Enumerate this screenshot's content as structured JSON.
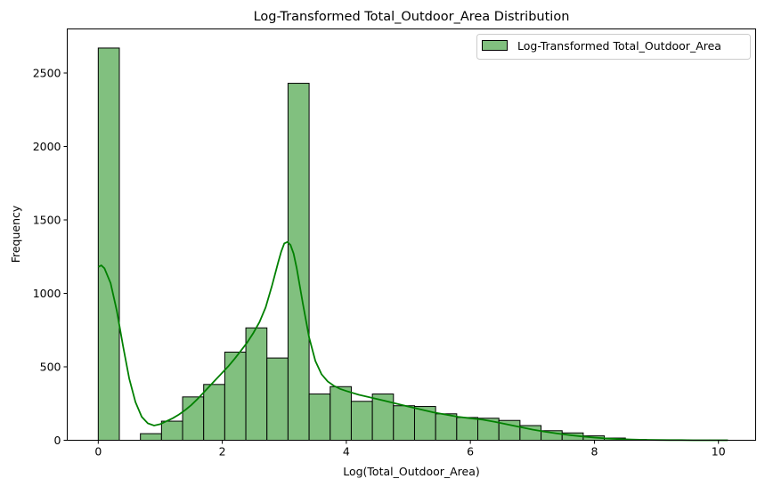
{
  "chart_data": {
    "type": "bar",
    "title": "Log-Transformed Total_Outdoor_Area Distribution",
    "xlabel": "Log(Total_Outdoor_Area)",
    "ylabel": "Frequency",
    "xlim": [
      -0.5,
      10.6
    ],
    "ylim": [
      0,
      2800
    ],
    "xticks": [
      0,
      2,
      4,
      6,
      8,
      10
    ],
    "yticks": [
      0,
      500,
      1000,
      1500,
      2000,
      2500
    ],
    "legend": {
      "label": "Log-Transformed Total_Outdoor_Area",
      "placement": "top-right"
    },
    "grid": false,
    "colors": {
      "bar_fill": "#81c07f",
      "bar_edge": "#000000",
      "kde": "#008000"
    },
    "bins": [
      {
        "x0": 0.0,
        "x1": 0.34,
        "value": 2670
      },
      {
        "x0": 0.34,
        "x1": 0.68,
        "value": 0
      },
      {
        "x0": 0.68,
        "x1": 1.02,
        "value": 45
      },
      {
        "x0": 1.02,
        "x1": 1.36,
        "value": 130
      },
      {
        "x0": 1.36,
        "x1": 1.7,
        "value": 295
      },
      {
        "x0": 1.7,
        "x1": 2.04,
        "value": 380
      },
      {
        "x0": 2.04,
        "x1": 2.38,
        "value": 600
      },
      {
        "x0": 2.38,
        "x1": 2.72,
        "value": 765
      },
      {
        "x0": 2.72,
        "x1": 3.06,
        "value": 560
      },
      {
        "x0": 3.06,
        "x1": 3.4,
        "value": 2430
      },
      {
        "x0": 3.4,
        "x1": 3.74,
        "value": 315
      },
      {
        "x0": 3.74,
        "x1": 4.08,
        "value": 365
      },
      {
        "x0": 4.08,
        "x1": 4.42,
        "value": 265
      },
      {
        "x0": 4.42,
        "x1": 4.76,
        "value": 315
      },
      {
        "x0": 4.76,
        "x1": 5.1,
        "value": 235
      },
      {
        "x0": 5.1,
        "x1": 5.44,
        "value": 230
      },
      {
        "x0": 5.44,
        "x1": 5.78,
        "value": 180
      },
      {
        "x0": 5.78,
        "x1": 6.12,
        "value": 155
      },
      {
        "x0": 6.12,
        "x1": 6.46,
        "value": 150
      },
      {
        "x0": 6.46,
        "x1": 6.8,
        "value": 135
      },
      {
        "x0": 6.8,
        "x1": 7.14,
        "value": 100
      },
      {
        "x0": 7.14,
        "x1": 7.48,
        "value": 65
      },
      {
        "x0": 7.48,
        "x1": 7.82,
        "value": 50
      },
      {
        "x0": 7.82,
        "x1": 8.16,
        "value": 30
      },
      {
        "x0": 8.16,
        "x1": 8.5,
        "value": 15
      },
      {
        "x0": 8.5,
        "x1": 8.84,
        "value": 5
      },
      {
        "x0": 8.84,
        "x1": 9.18,
        "value": 3
      },
      {
        "x0": 9.18,
        "x1": 9.52,
        "value": 2
      },
      {
        "x0": 9.52,
        "x1": 9.86,
        "value": 1
      },
      {
        "x0": 9.86,
        "x1": 10.15,
        "value": 1
      }
    ],
    "kde": {
      "x": [
        0.0,
        0.05,
        0.1,
        0.2,
        0.3,
        0.4,
        0.5,
        0.6,
        0.7,
        0.8,
        0.9,
        1.0,
        1.1,
        1.2,
        1.3,
        1.4,
        1.5,
        1.6,
        1.7,
        1.8,
        1.9,
        2.0,
        2.1,
        2.2,
        2.3,
        2.4,
        2.5,
        2.6,
        2.7,
        2.8,
        2.9,
        2.95,
        3.0,
        3.05,
        3.1,
        3.15,
        3.2,
        3.3,
        3.4,
        3.5,
        3.6,
        3.7,
        3.8,
        3.9,
        4.0,
        4.2,
        4.4,
        4.6,
        4.8,
        5.0,
        5.2,
        5.4,
        5.6,
        5.8,
        6.0,
        6.2,
        6.4,
        6.6,
        6.8,
        7.0,
        7.2,
        7.4,
        7.6,
        7.8,
        8.0,
        8.2,
        8.4,
        8.6,
        8.8,
        9.0,
        9.2,
        9.4,
        9.6,
        9.8,
        10.0,
        10.15
      ],
      "y": [
        1180,
        1190,
        1170,
        1070,
        880,
        640,
        420,
        260,
        160,
        115,
        100,
        110,
        130,
        150,
        175,
        205,
        240,
        280,
        325,
        370,
        415,
        460,
        505,
        555,
        610,
        665,
        730,
        805,
        905,
        1050,
        1210,
        1285,
        1340,
        1350,
        1330,
        1270,
        1170,
        930,
        700,
        540,
        450,
        400,
        370,
        350,
        335,
        310,
        290,
        270,
        250,
        230,
        210,
        190,
        175,
        160,
        150,
        140,
        125,
        108,
        90,
        73,
        58,
        46,
        35,
        26,
        18,
        12,
        8,
        5,
        3,
        2,
        1,
        1,
        0,
        0,
        0,
        0
      ]
    }
  }
}
